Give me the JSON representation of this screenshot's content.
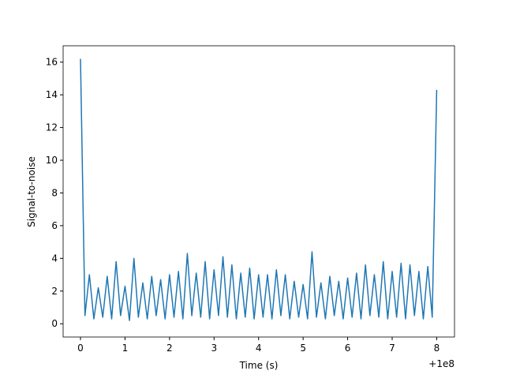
{
  "chart_data": {
    "type": "line",
    "xlabel": "Time (s)",
    "ylabel": "Signal-to-noise",
    "x_offset_label": "+1e8",
    "x": [
      0,
      0.1,
      0.2,
      0.3,
      0.4,
      0.5,
      0.6,
      0.7,
      0.8,
      0.9,
      1.0,
      1.1,
      1.2,
      1.3,
      1.4,
      1.5,
      1.6,
      1.7,
      1.8,
      1.9,
      2.0,
      2.1,
      2.2,
      2.3,
      2.4,
      2.5,
      2.6,
      2.7,
      2.8,
      2.9,
      3.0,
      3.1,
      3.2,
      3.3,
      3.4,
      3.5,
      3.6,
      3.7,
      3.8,
      3.9,
      4.0,
      4.1,
      4.2,
      4.3,
      4.4,
      4.5,
      4.6,
      4.7,
      4.8,
      4.9,
      5.0,
      5.1,
      5.2,
      5.3,
      5.4,
      5.5,
      5.6,
      5.7,
      5.8,
      5.9,
      6.0,
      6.1,
      6.2,
      6.3,
      6.4,
      6.5,
      6.6,
      6.7,
      6.8,
      6.9,
      7.0,
      7.1,
      7.2,
      7.3,
      7.4,
      7.5,
      7.6,
      7.7,
      7.8,
      7.9,
      8.0
    ],
    "series": [
      {
        "color": "#1f77b4",
        "values": [
          16.2,
          0.5,
          3.0,
          0.3,
          2.2,
          0.4,
          2.9,
          0.3,
          3.8,
          0.5,
          2.3,
          0.2,
          4.0,
          0.4,
          2.5,
          0.3,
          2.9,
          0.5,
          2.7,
          0.3,
          3.0,
          0.4,
          3.2,
          0.3,
          4.3,
          0.5,
          3.1,
          0.4,
          3.8,
          0.3,
          3.3,
          0.5,
          4.1,
          0.4,
          3.6,
          0.3,
          3.1,
          0.4,
          3.4,
          0.3,
          3.0,
          0.4,
          3.0,
          0.3,
          3.3,
          0.5,
          3.0,
          0.3,
          2.6,
          0.4,
          2.4,
          0.3,
          4.4,
          0.4,
          2.5,
          0.3,
          2.9,
          0.5,
          2.6,
          0.3,
          2.8,
          0.4,
          3.1,
          0.3,
          3.6,
          0.5,
          3.0,
          0.4,
          3.8,
          0.3,
          3.2,
          0.4,
          3.7,
          0.3,
          3.6,
          0.5,
          3.2,
          0.3,
          3.5,
          0.4,
          14.3
        ]
      }
    ],
    "xlim": [
      -0.39,
      8.4
    ],
    "ylim": [
      -0.81,
      17.0
    ],
    "xticks": [
      0,
      1,
      2,
      3,
      4,
      5,
      6,
      7,
      8
    ],
    "yticks": [
      0,
      2,
      4,
      6,
      8,
      10,
      12,
      14,
      16
    ],
    "grid": false
  }
}
